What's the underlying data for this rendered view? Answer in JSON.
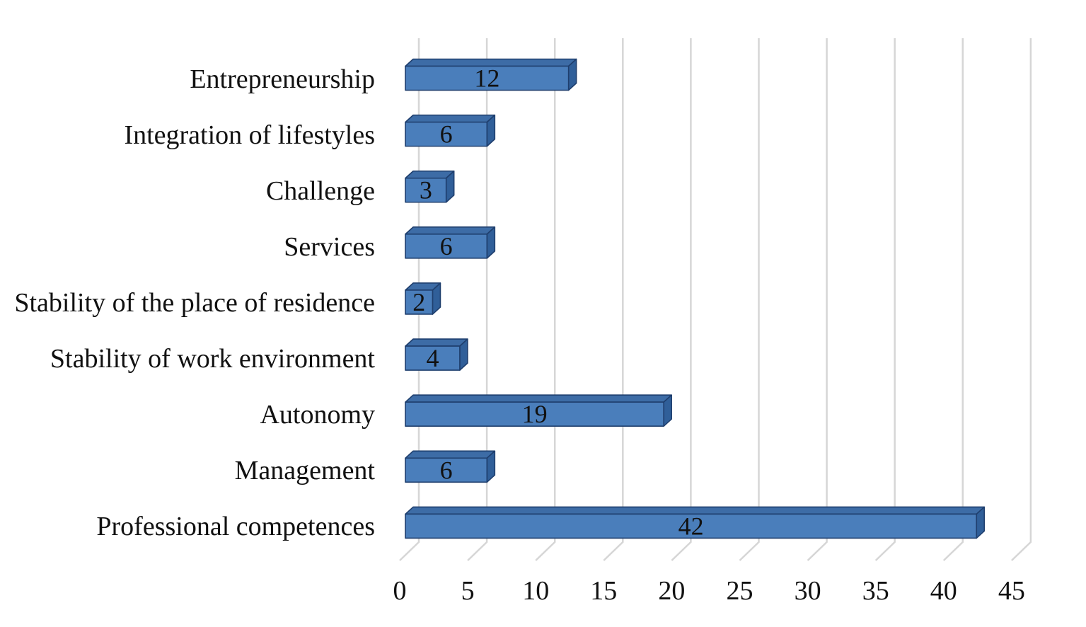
{
  "chart_data": {
    "type": "bar",
    "orientation": "horizontal",
    "style": "3d-bar",
    "title": "",
    "xlabel": "",
    "ylabel": "",
    "categories": [
      "Entrepreneurship",
      "Integration of lifestyles",
      "Challenge",
      "Services",
      "Stability of the place of residence",
      "Stability of work environment",
      "Autonomy",
      "Management",
      "Professional competences"
    ],
    "values": [
      12,
      6,
      3,
      6,
      2,
      4,
      19,
      6,
      42
    ],
    "xlim": [
      0,
      45
    ],
    "x_tick_step": 5,
    "tick_labels": [
      "0",
      "5",
      "10",
      "15",
      "20",
      "25",
      "30",
      "35",
      "40",
      "45"
    ],
    "grid": "vertical gridlines on",
    "legend": "none",
    "data_labels": "inside bar, centered"
  },
  "colors": {
    "bar_front": "#4a7ebb",
    "bar_top": "#3d6ca6",
    "bar_side": "#305f99",
    "bar_outline": "#1f3f6e",
    "gridline": "#d6d6d6",
    "text": "#111111",
    "background": "#ffffff"
  }
}
